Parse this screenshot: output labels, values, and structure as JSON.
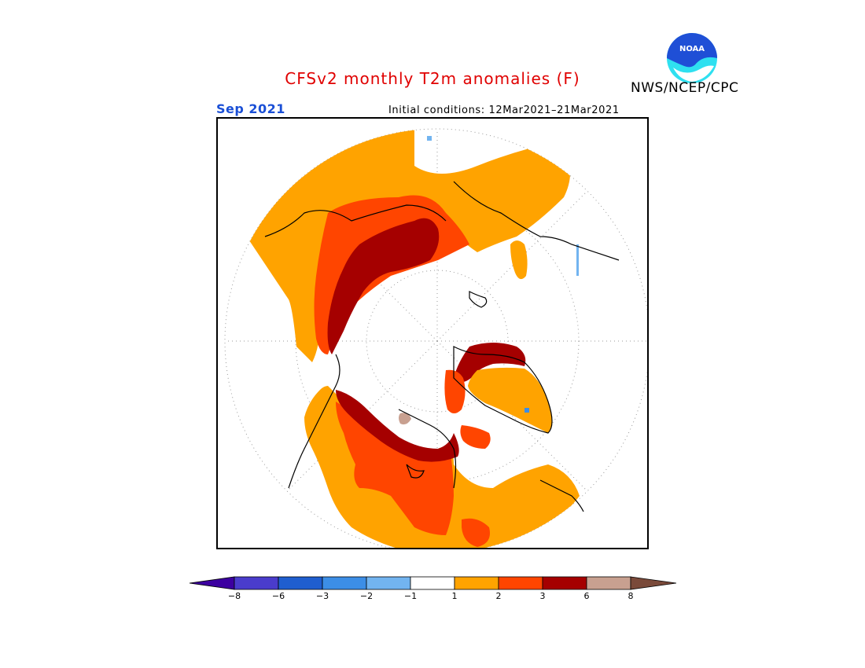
{
  "title": "CFSv2 monthly T2m anomalies (F)",
  "organization": "NWS/NCEP/CPC",
  "logo": {
    "icon": "noaa-logo-icon",
    "text": "NOAA",
    "colors": [
      "#1f4fd6",
      "#2fe0f0"
    ]
  },
  "month": "Sep 2021",
  "initial_conditions": "Initial conditions: 12Mar2021–21Mar2021",
  "map": {
    "projection": "north polar stereographic",
    "colors_present": {
      "1_to_2": "#ffa300",
      "2_to_3": "#ff4500",
      "3_to_6": "#a50000",
      "6_to_8": "#c8a090",
      "minus2_to_minus1": "#72b4f0"
    }
  },
  "legend": {
    "bins": [
      {
        "range": "< -8",
        "color": "#3c00a0"
      },
      {
        "range": "-8 to -6",
        "color": "#4a3ccc"
      },
      {
        "range": "-6 to -3",
        "color": "#1f5ecf"
      },
      {
        "range": "-3 to -2",
        "color": "#3c8ee6"
      },
      {
        "range": "-2 to -1",
        "color": "#72b4f0"
      },
      {
        "range": "-1 to 1",
        "color": "#ffffff"
      },
      {
        "range": "1 to 2",
        "color": "#ffa300"
      },
      {
        "range": "2 to 3",
        "color": "#ff4500"
      },
      {
        "range": "3 to 6",
        "color": "#a50000"
      },
      {
        "range": "6 to 8",
        "color": "#c8a090"
      },
      {
        "range": "> 8",
        "color": "#7a4a3a"
      }
    ],
    "tick_labels": [
      "−8",
      "−6",
      "−3",
      "−2",
      "−1",
      "1",
      "2",
      "3",
      "6",
      "8"
    ]
  }
}
